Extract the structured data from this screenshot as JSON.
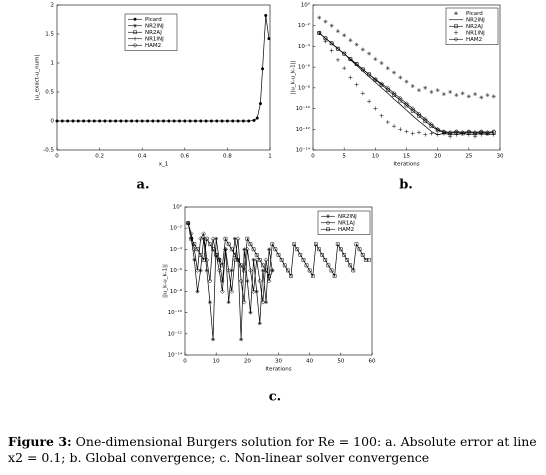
{
  "panels": [
    {
      "chart_data": {
        "type": "line",
        "log": false,
        "xlabel": "x_1",
        "ylabel": "|u_exact-u_num|",
        "xlim": [
          0,
          1
        ],
        "ylim": [
          -0.5,
          2
        ],
        "xticks": [
          0,
          0.2,
          0.4,
          0.6,
          0.8,
          1
        ],
        "yticks": [
          -0.5,
          0,
          0.5,
          1,
          1.5,
          2
        ],
        "x": [
          0,
          0.025,
          0.05,
          0.075,
          0.1,
          0.125,
          0.15,
          0.175,
          0.2,
          0.225,
          0.25,
          0.275,
          0.3,
          0.325,
          0.35,
          0.375,
          0.4,
          0.425,
          0.45,
          0.475,
          0.5,
          0.525,
          0.55,
          0.575,
          0.6,
          0.625,
          0.65,
          0.675,
          0.7,
          0.725,
          0.75,
          0.775,
          0.8,
          0.825,
          0.85,
          0.875,
          0.9,
          0.925,
          0.94,
          0.955,
          0.965,
          0.98,
          0.995
        ],
        "values": [
          0,
          0,
          0,
          0,
          0,
          0,
          0,
          0,
          0,
          0,
          0,
          0,
          0,
          0,
          0,
          0,
          0,
          0,
          0,
          0,
          0,
          0,
          0,
          0,
          0,
          0,
          0,
          0,
          0,
          0,
          0,
          0,
          0,
          0,
          0,
          0,
          0,
          0.01,
          0.05,
          0.3,
          0.9,
          1.82,
          1.42
        ],
        "color": "#000000",
        "series": [
          {
            "name": "Picard",
            "marker": "dot"
          },
          {
            "name": "NR2INJ",
            "marker": "star"
          },
          {
            "name": "NR2AJ",
            "marker": "square"
          },
          {
            "name": "NR1INJ",
            "marker": "plus"
          },
          {
            "name": "HAM2",
            "marker": "diamond"
          }
        ]
      },
      "label": "a."
    },
    {
      "chart_data": {
        "type": "line",
        "log": true,
        "xlabel": "Iterations",
        "ylabel": "||u_k-u_k-1||",
        "xlim": [
          0,
          30
        ],
        "ylim": [
          1e-14,
          1
        ],
        "xticks": [
          0,
          5,
          10,
          15,
          20,
          25,
          30
        ],
        "yticks": [
          {
            "value": 1,
            "label": "10⁰"
          },
          {
            "value": 0.01,
            "label": "10⁻²"
          },
          {
            "value": 0.0001,
            "label": "10⁻⁴"
          },
          {
            "value": 1e-06,
            "label": "10⁻⁶"
          },
          {
            "value": 1e-08,
            "label": "10⁻⁸"
          },
          {
            "value": 1e-10,
            "label": "10⁻¹⁰"
          },
          {
            "value": 1e-12,
            "label": "10⁻¹²"
          },
          {
            "value": 1e-14,
            "label": "10⁻¹⁴"
          }
        ],
        "x": [
          1,
          2,
          3,
          4,
          5,
          6,
          7,
          8,
          9,
          10,
          11,
          12,
          13,
          14,
          15,
          16,
          17,
          18,
          19,
          20,
          21,
          22,
          23,
          24,
          25,
          26,
          27,
          28,
          29
        ],
        "series": [
          {
            "name": "Picard",
            "marker": "star",
            "line": false,
            "color": "#333333",
            "values": [
              0.06,
              0.025,
              0.01,
              0.003,
              0.0012,
              0.0004,
              0.00015,
              5e-05,
              2e-05,
              6e-06,
              2.5e-06,
              8e-07,
              3e-07,
              1e-07,
              4e-08,
              1.5e-08,
              6e-09,
              1e-08,
              4e-09,
              6e-09,
              2.5e-09,
              4e-09,
              2e-09,
              3e-09,
              1.5e-09,
              2.5e-09,
              1.2e-09,
              2e-09,
              1.5e-09
            ]
          },
          {
            "name": "NR2INJ",
            "marker": "none",
            "line": true,
            "color": "#000000",
            "values": [
              0.002,
              0.0006,
              0.0002,
              6e-05,
              2e-05,
              5e-06,
              1.5e-06,
              4e-07,
              1.2e-07,
              3.5e-08,
              1e-08,
              3e-09,
              8e-10,
              2.5e-10,
              7e-11,
              2e-11,
              6e-12,
              2e-12,
              6e-13,
              3e-13,
              4e-13,
              3e-13,
              3e-13,
              4e-13,
              3e-13,
              3e-13,
              4e-13,
              3e-13,
              3e-13
            ]
          },
          {
            "name": "NR2AJ",
            "marker": "square",
            "line": true,
            "color": "#000000",
            "values": [
              0.002,
              0.0006,
              0.0002,
              6e-05,
              2e-05,
              6e-06,
              2e-06,
              6e-07,
              2e-07,
              6e-08,
              2e-08,
              6e-09,
              2e-09,
              6e-10,
              2e-10,
              6e-11,
              2e-11,
              6e-12,
              2e-12,
              8e-13,
              5e-13,
              4e-13,
              5e-13,
              4e-13,
              5e-13,
              4e-13,
              5e-13,
              4e-13,
              5e-13
            ]
          },
          {
            "name": "NR1INJ",
            "marker": "plus",
            "line": false,
            "color": "#000000",
            "values": [
              0.002,
              0.0003,
              4e-05,
              5e-06,
              8e-07,
              1e-07,
              2e-08,
              3e-09,
              5e-10,
              1e-10,
              2e-11,
              5e-12,
              2e-12,
              1e-12,
              6e-13,
              4e-13,
              5e-13,
              3e-13,
              4e-13,
              3e-13,
              4e-13,
              2e-13,
              3e-13,
              4e-13,
              3e-13,
              2e-13,
              3e-13,
              4e-13,
              3e-13
            ]
          },
          {
            "name": "HAM2",
            "marker": "diamond",
            "line": true,
            "color": "#000000",
            "values": [
              0.002,
              0.0006,
              0.0002,
              6e-05,
              2e-05,
              6e-06,
              2e-06,
              6e-07,
              2e-07,
              7e-08,
              2.5e-08,
              1e-08,
              3e-09,
              1e-09,
              3e-10,
              1e-10,
              3e-11,
              1e-11,
              3e-12,
              1e-12,
              6e-13,
              5e-13,
              6e-13,
              5e-13,
              6e-13,
              5e-13,
              6e-13,
              5e-13,
              6e-13
            ]
          }
        ]
      },
      "label": "b."
    },
    {
      "chart_data": {
        "type": "line",
        "log": true,
        "xlabel": "Iterations",
        "ylabel": "||u_k-u_k-1||",
        "xlim": [
          0,
          60
        ],
        "ylim": [
          1e-14,
          1
        ],
        "xticks": [
          0,
          10,
          20,
          30,
          40,
          50,
          60
        ],
        "yticks": [
          {
            "value": 1,
            "label": "10⁰"
          },
          {
            "value": 0.01,
            "label": "10⁻²"
          },
          {
            "value": 0.0001,
            "label": "10⁻⁴"
          },
          {
            "value": 1e-06,
            "label": "10⁻⁶"
          },
          {
            "value": 1e-08,
            "label": "10⁻⁸"
          },
          {
            "value": 1e-10,
            "label": "10⁻¹⁰"
          },
          {
            "value": 1e-12,
            "label": "10⁻¹²"
          },
          {
            "value": 1e-14,
            "label": "10⁻¹⁴"
          }
        ],
        "series": [
          {
            "name": "NR2INJ",
            "marker": "star",
            "line": true,
            "color": "#000000",
            "x": [
              1,
              2,
              3,
              4,
              5,
              6,
              7,
              8,
              9,
              10,
              11,
              12,
              13,
              14,
              15,
              16,
              17,
              18,
              19,
              20,
              21,
              22,
              23,
              24,
              25,
              26,
              27,
              28
            ],
            "values": [
              0.03,
              0.001,
              1e-05,
              1e-08,
              1e-06,
              0.001,
              1e-06,
              1e-09,
              3e-13,
              0.001,
              1e-05,
              1e-07,
              0.0001,
              1e-09,
              1e-06,
              0.001,
              1e-05,
              3e-13,
              0.0001,
              1e-07,
              1e-10,
              1e-05,
              1e-08,
              1e-11,
              1e-06,
              1e-09,
              0.0001,
              1e-06
            ]
          },
          {
            "name": "NR1AJ",
            "marker": "diamond",
            "line": true,
            "color": "#000000",
            "x": [
              1,
              2,
              3,
              4,
              5,
              6,
              7,
              8,
              9,
              10,
              11,
              12,
              13,
              14,
              15,
              16,
              17,
              18,
              19,
              20,
              21,
              22,
              23,
              24,
              25,
              26,
              27,
              28
            ],
            "values": [
              0.03,
              0.003,
              0.0001,
              1e-06,
              0.001,
              0.003,
              1e-05,
              1e-07,
              0.001,
              3e-05,
              1e-06,
              1e-08,
              0.0001,
              1e-06,
              1e-08,
              1e-05,
              0.001,
              1e-07,
              1e-09,
              0.0001,
              1e-06,
              1e-08,
              1e-05,
              1e-07,
              1e-09,
              1e-05,
              1e-07,
              1e-06
            ]
          },
          {
            "name": "HAM2",
            "marker": "square",
            "line": true,
            "color": "#000000",
            "x": [
              1,
              2,
              3,
              4,
              5,
              6,
              7,
              8,
              9,
              10,
              11,
              12,
              13,
              14,
              15,
              16,
              17,
              18,
              19,
              20,
              21,
              22,
              23,
              24,
              25,
              26,
              27,
              28,
              29,
              30,
              31,
              32,
              33,
              34,
              35,
              36,
              37,
              38,
              39,
              40,
              41,
              42,
              43,
              44,
              45,
              46,
              47,
              48,
              49,
              50,
              51,
              52,
              53,
              54,
              55,
              56,
              57,
              58,
              59
            ],
            "values": [
              0.03,
              0.001,
              0.0003,
              0.0001,
              3e-05,
              1e-05,
              0.001,
              0.0003,
              0.0001,
              3e-05,
              1e-05,
              3e-06,
              0.001,
              0.0003,
              0.0001,
              3e-05,
              1e-05,
              3e-06,
              1e-06,
              0.001,
              0.0003,
              0.0001,
              3e-05,
              1e-05,
              3e-06,
              1e-06,
              3e-07,
              0.0003,
              0.0001,
              3e-05,
              1e-05,
              3e-06,
              1e-06,
              3e-07,
              0.0003,
              0.0001,
              3e-05,
              1e-05,
              3e-06,
              1e-06,
              3e-07,
              0.0003,
              0.0001,
              3e-05,
              1e-05,
              3e-06,
              1e-06,
              3e-07,
              0.0003,
              0.0001,
              3e-05,
              1e-05,
              3e-06,
              1e-06,
              0.0003,
              0.0001,
              3e-05,
              1e-05,
              1e-05
            ]
          }
        ]
      },
      "label": "c."
    }
  ],
  "caption": {
    "label": "Figure 3:",
    "text": "One-dimensional Burgers solution for Re = 100: a. Absolute error at line x2 = 0.1; b. Global convergence; c. Non-linear solver convergence"
  }
}
